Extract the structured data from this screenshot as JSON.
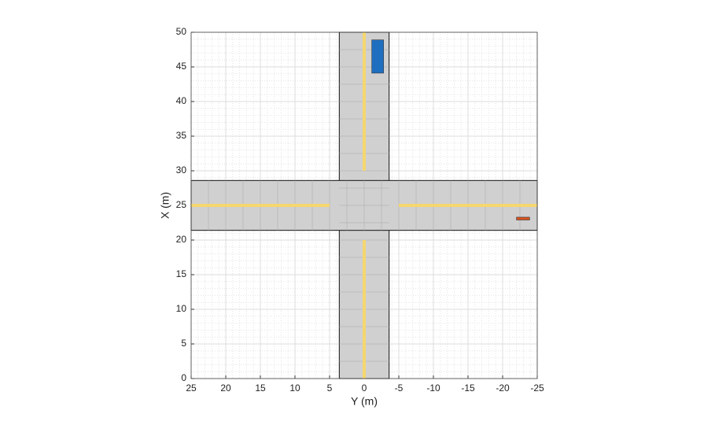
{
  "chart_data": {
    "type": "scenario",
    "xlabel": "Y (m)",
    "ylabel": "X (m)",
    "xlim": [
      25,
      -25
    ],
    "ylim": [
      0,
      50
    ],
    "xticks": [
      25,
      20,
      15,
      10,
      5,
      0,
      -5,
      -10,
      -15,
      -20,
      -25
    ],
    "yticks": [
      0,
      5,
      10,
      15,
      20,
      25,
      30,
      35,
      40,
      45,
      50
    ],
    "grid": true,
    "road_color": "#d0d0d0",
    "marking_color": "#f5d76e",
    "roads": [
      {
        "x": [
          0,
          50
        ],
        "y": [
          3.6,
          -3.6
        ]
      },
      {
        "x": [
          21.4,
          28.6
        ],
        "y": [
          25,
          -25
        ]
      }
    ],
    "lane_markings": [
      {
        "x": [
          0,
          20
        ],
        "y": [
          0,
          0
        ]
      },
      {
        "x": [
          30,
          50
        ],
        "y": [
          0,
          0
        ]
      },
      {
        "x": [
          25,
          25
        ],
        "y": [
          25,
          5
        ]
      },
      {
        "x": [
          25,
          25
        ],
        "y": [
          -5,
          -25
        ]
      }
    ],
    "actors": [
      {
        "color": "#1f6fc1",
        "x": [
          44.1,
          48.9
        ],
        "y": [
          -1.1,
          -2.8
        ]
      },
      {
        "color": "#d9531e",
        "x": [
          22.9,
          23.3
        ],
        "y": [
          -22.0,
          -23.9
        ]
      }
    ]
  }
}
